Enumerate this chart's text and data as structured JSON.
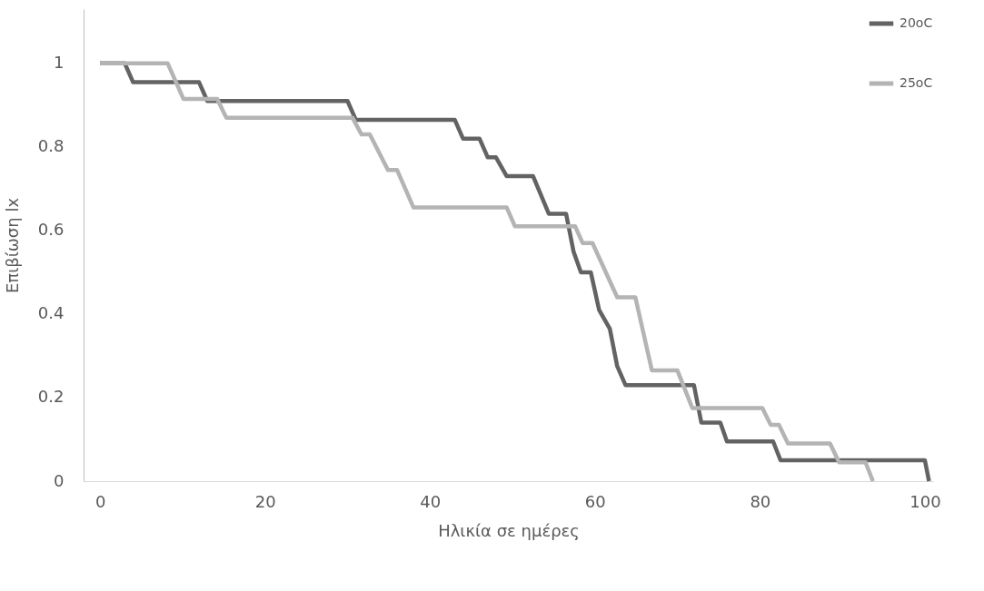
{
  "chart_data": {
    "type": "line",
    "xlabel": "Ηλικία σε ημέρες",
    "ylabel": "Επιβίωση lx",
    "xlim": [
      -2,
      101
    ],
    "ylim": [
      0,
      1.13
    ],
    "xticks": [
      0,
      20,
      40,
      60,
      80,
      100
    ],
    "yticks": [
      0,
      0.2,
      0.4,
      0.6,
      0.8,
      1
    ],
    "grid": false,
    "legend": "top right",
    "marker": "none",
    "line_style": "solid",
    "series": [
      {
        "name": "20oC",
        "color": "#636363",
        "x": [
          0,
          3,
          4,
          12,
          13,
          30,
          31,
          43,
          44,
          46,
          47,
          48,
          49.3,
          52.5,
          54.4,
          56.5,
          57.4,
          58.3,
          59.5,
          60.5,
          61.8,
          62.7,
          63.7,
          72,
          72.9,
          75.2,
          76,
          81.6,
          82.5,
          100,
          100.5
        ],
        "values": [
          1,
          1,
          0.955,
          0.955,
          0.91,
          0.91,
          0.865,
          0.865,
          0.82,
          0.82,
          0.775,
          0.775,
          0.73,
          0.73,
          0.64,
          0.64,
          0.55,
          0.5,
          0.5,
          0.41,
          0.365,
          0.275,
          0.23,
          0.23,
          0.14,
          0.14,
          0.095,
          0.095,
          0.05,
          0.05,
          0
        ]
      },
      {
        "name": "25oC",
        "color": "#b4b4b4",
        "x": [
          0,
          8.2,
          10.1,
          14.2,
          15.3,
          30.6,
          31.7,
          32.7,
          34.9,
          36,
          38,
          49.3,
          50.3,
          57.6,
          58.5,
          59.7,
          62.7,
          64.9,
          66.9,
          70,
          71.8,
          80.3,
          81.3,
          82.3,
          83.4,
          88.5,
          89.6,
          92.8,
          93.7
        ],
        "values": [
          1,
          1,
          0.915,
          0.915,
          0.87,
          0.87,
          0.83,
          0.83,
          0.745,
          0.745,
          0.655,
          0.655,
          0.61,
          0.61,
          0.57,
          0.57,
          0.44,
          0.44,
          0.265,
          0.265,
          0.175,
          0.175,
          0.135,
          0.135,
          0.09,
          0.09,
          0.045,
          0.045,
          0
        ]
      }
    ]
  }
}
